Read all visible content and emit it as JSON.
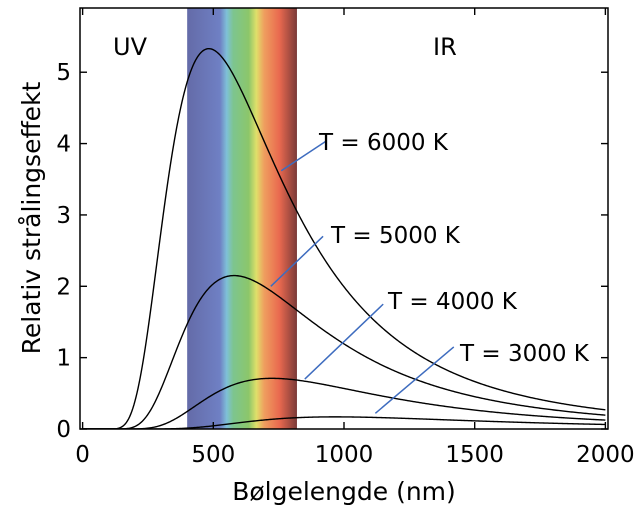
{
  "chart_data": {
    "type": "line",
    "title": "",
    "xlabel": "Bølgelengde (nm)",
    "ylabel": "Relativ strålingseffekt",
    "xlim": [
      -10,
      2010
    ],
    "ylim": [
      0,
      5.9
    ],
    "xticks": [
      0,
      500,
      1000,
      1500,
      2000
    ],
    "yticks": [
      0,
      1,
      2,
      3,
      4,
      5
    ],
    "grid": false,
    "legend": "none",
    "visible_band_nm": [
      400,
      820
    ],
    "region_labels": {
      "uv": "UV",
      "ir": "IR"
    },
    "series": [
      {
        "name": "T = 6000 K",
        "temperature_K": 6000,
        "peak": [
          483,
          5.33
        ],
        "x": [
          0,
          150,
          200,
          250,
          300,
          350,
          400,
          450,
          483,
          550,
          600,
          700,
          800,
          900,
          1000,
          1200,
          1500,
          2000
        ],
        "y": [
          0,
          0.07,
          0.55,
          1.7,
          3.0,
          4.1,
          4.85,
          5.25,
          5.33,
          5.15,
          4.83,
          4.05,
          3.24,
          2.52,
          1.96,
          1.23,
          0.66,
          0.28
        ]
      },
      {
        "name": "T = 5000 K",
        "temperature_K": 5000,
        "peak": [
          580,
          2.15
        ],
        "x": [
          0,
          200,
          250,
          300,
          350,
          400,
          450,
          500,
          580,
          650,
          700,
          800,
          900,
          1000,
          1200,
          1500,
          2000
        ],
        "y": [
          0,
          0.05,
          0.24,
          0.62,
          1.08,
          1.5,
          1.83,
          2.04,
          2.15,
          2.1,
          2.03,
          1.8,
          1.52,
          1.25,
          0.85,
          0.5,
          0.22
        ]
      },
      {
        "name": "T = 4000 K",
        "temperature_K": 4000,
        "peak": [
          725,
          0.71
        ],
        "x": [
          0,
          300,
          350,
          400,
          450,
          500,
          600,
          725,
          800,
          900,
          1000,
          1200,
          1500,
          2000
        ],
        "y": [
          0,
          0.03,
          0.1,
          0.2,
          0.32,
          0.43,
          0.6,
          0.71,
          0.7,
          0.67,
          0.61,
          0.49,
          0.33,
          0.17
        ]
      },
      {
        "name": "T = 3000 K",
        "temperature_K": 3000,
        "peak": [
          966,
          0.17
        ],
        "x": [
          0,
          400,
          500,
          600,
          700,
          800,
          966,
          1100,
          1200,
          1500,
          2000
        ],
        "y": [
          0,
          0.005,
          0.025,
          0.06,
          0.1,
          0.135,
          0.17,
          0.165,
          0.16,
          0.13,
          0.085
        ]
      }
    ],
    "label_pointer_targets": [
      {
        "label": "T = 6000 K",
        "text_at": [
          930,
          4.03
        ],
        "curve_at": [
          760,
          3.62
        ]
      },
      {
        "label": "T = 5000 K",
        "text_at": [
          920,
          2.7
        ],
        "curve_at": [
          720,
          2.0
        ]
      },
      {
        "label": "T = 4000 K",
        "text_at": [
          1150,
          1.75
        ],
        "curve_at": [
          850,
          0.7
        ]
      },
      {
        "label": "T = 3000 K",
        "text_at": [
          1420,
          1.15
        ],
        "curve_at": [
          1120,
          0.22
        ]
      }
    ]
  }
}
